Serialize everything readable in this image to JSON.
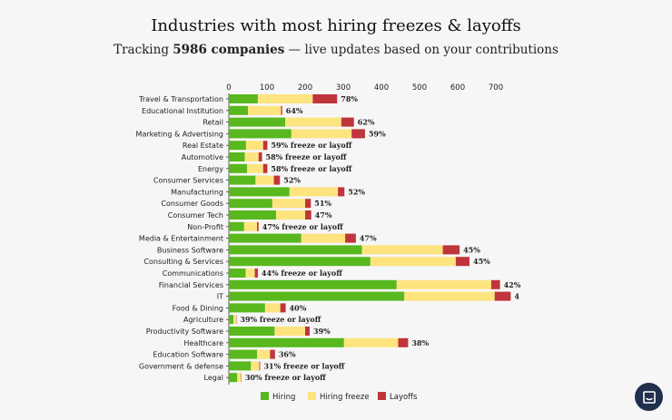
{
  "header": {
    "title": "Industries with most hiring freezes & layoffs",
    "subtitle_prefix": "Tracking ",
    "subtitle_count": "5986 companies",
    "subtitle_suffix": " — live updates based on your contributions"
  },
  "colors": {
    "hiring": "#58b81e",
    "freeze": "#fde47f",
    "layoffs": "#c0343b"
  },
  "chart_data": {
    "type": "bar",
    "orientation": "horizontal",
    "stacked": true,
    "xlim": [
      0,
      700
    ],
    "xticks": [
      0,
      100,
      200,
      300,
      400,
      500,
      600,
      700
    ],
    "legend": [
      "Hiring",
      "Hiring freeze",
      "Layoffs"
    ],
    "legend_position": "bottom",
    "categories": [
      "Travel & Transportation",
      "Educational Institution",
      "Retail",
      "Marketing & Advertising",
      "Real Estate",
      "Automotive",
      "Energy",
      "Consumer Services",
      "Manufacturing",
      "Consumer Goods",
      "Consumer Tech",
      "Non-Profit",
      "Media & Entertainment",
      "Business Software",
      "Consulting & Services",
      "Communications",
      "Financial Services",
      "IT",
      "Food & Dining",
      "Agriculture",
      "Productivity Software",
      "Healthcare",
      "Education Software",
      "Government & defense",
      "Legal"
    ],
    "series": [
      {
        "name": "Hiring",
        "values": [
          76,
          50,
          148,
          164,
          45,
          42,
          48,
          70,
          159,
          114,
          124,
          40,
          190,
          349,
          371,
          44,
          440,
          460,
          95,
          12,
          120,
          302,
          74,
          58,
          22
        ]
      },
      {
        "name": "Hiring freeze",
        "values": [
          144,
          87,
          147,
          158,
          45,
          36,
          42,
          48,
          127,
          86,
          76,
          34,
          115,
          212,
          224,
          24,
          248,
          237,
          40,
          7,
          80,
          142,
          34,
          22,
          10
        ]
      },
      {
        "name": "Layoffs",
        "values": [
          64,
          3,
          33,
          35,
          11,
          9,
          11,
          16,
          17,
          15,
          16,
          4,
          28,
          44,
          36,
          8,
          23,
          42,
          14,
          1,
          12,
          26,
          13,
          2,
          1
        ]
      }
    ],
    "labels": [
      "78%",
      "64%",
      "62%",
      "59%",
      "59% freeze or layoff",
      "58% freeze or layoff",
      "58% freeze or layoff",
      "52%",
      "52%",
      "51%",
      "47%",
      "47% freeze or layoff",
      "47%",
      "45%",
      "45%",
      "44% freeze or layoff",
      "42%",
      "4",
      "40%",
      "39% freeze or layoff",
      "39%",
      "38%",
      "36%",
      "31% freeze or layoff",
      "30% freeze or layoff"
    ]
  }
}
